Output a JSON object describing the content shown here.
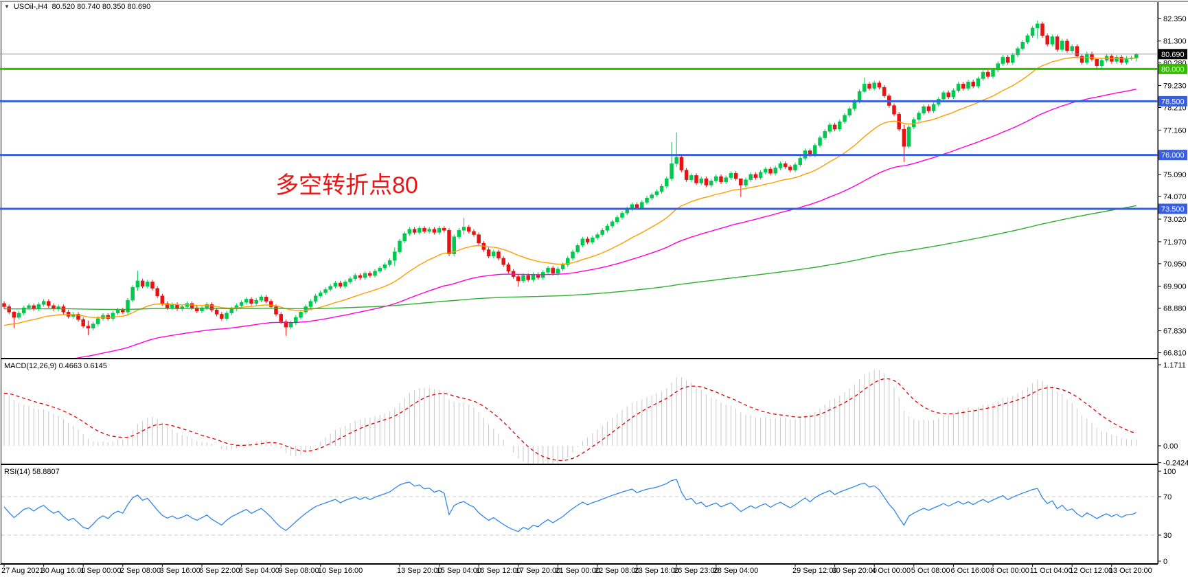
{
  "window": {
    "symbol_line": {
      "symbol": "USOil-,H4",
      "quote_text": "80.520 80.740 80.350 80.690"
    }
  },
  "annotation": {
    "text": "多空转折点80",
    "color": "#ee1414"
  },
  "panes": {
    "macd_label": "MACD(12,26,9) 0.4663 0.6145",
    "rsi_label": "RSI(14) 58.8807"
  },
  "colors": {
    "bull": "#00c94f",
    "bear": "#e81212",
    "ma_fast": "#ff9d00",
    "ma_medium": "#ff00e1",
    "ma_slow": "#2fae2f",
    "macd_hist": "#c6c6c6",
    "macd_signal": "#e00000",
    "rsi_line": "#2e86e8",
    "level_dash": "#c8c8c8",
    "hline_blue": "#3a5fdc",
    "hline_green": "#33bb00",
    "current_line": "#909090",
    "current_badge": "#000000",
    "axis_text": "#000000"
  },
  "chart_data": {
    "type": "candlestick+indicators",
    "symbol": "USOil-",
    "timeframe": "H4",
    "current_quote": {
      "open": 80.52,
      "high": 80.74,
      "low": 80.35,
      "close": 80.69
    },
    "price_axis": {
      "ylim": [
        66.57,
        83.11
      ],
      "ticks": [
        82.35,
        81.3,
        80.28,
        79.23,
        78.21,
        77.16,
        76.14,
        75.09,
        74.07,
        73.02,
        71.97,
        70.95,
        69.9,
        68.88,
        67.83,
        66.81
      ]
    },
    "macd_axis": {
      "ylim": [
        -0.256,
        1.241
      ],
      "ticks": [
        {
          "t": "1.1711",
          "v": 1.1711
        },
        {
          "t": "0.00",
          "v": 0
        },
        {
          "t": "-0.2424",
          "v": -0.2424
        }
      ]
    },
    "rsi_axis": {
      "ylim": [
        0.7,
        102.9
      ],
      "ticks": [
        {
          "t": "100",
          "v": 100
        },
        {
          "t": "70",
          "v": 70
        },
        {
          "t": "30",
          "v": 30
        },
        {
          "t": "0",
          "v": 0
        }
      ],
      "levels": [
        70,
        30
      ]
    },
    "hlines": [
      {
        "label": "80.000",
        "value": 80.0,
        "color": "#33bb00",
        "width": 3
      },
      {
        "label": "78.500",
        "value": 78.5,
        "color": "#3a5fdc",
        "width": 3
      },
      {
        "label": "76.000",
        "value": 76.0,
        "color": "#3a5fdc",
        "width": 3
      },
      {
        "label": "73.500",
        "value": 73.5,
        "color": "#3a5fdc",
        "width": 3
      }
    ],
    "current_price_line": {
      "label": "80.690",
      "value": 80.69
    },
    "time_labels": [
      {
        "t": "27 Aug 2021",
        "bar": 0
      },
      {
        "t": "30 Aug 16:00",
        "bar": 8
      },
      {
        "t": "1 Sep 00:00",
        "bar": 16
      },
      {
        "t": "2 Sep 08:00",
        "bar": 24
      },
      {
        "t": "3 Sep 16:00",
        "bar": 32
      },
      {
        "t": "6 Sep 22:00",
        "bar": 40
      },
      {
        "t": "8 Sep 04:00",
        "bar": 48
      },
      {
        "t": "9 Sep 08:00",
        "bar": 56
      },
      {
        "t": "10 Sep 16:00",
        "bar": 64
      },
      {
        "t": "13 Sep 20:00",
        "bar": 80
      },
      {
        "t": "15 Sep 04:00",
        "bar": 88
      },
      {
        "t": "16 Sep 12:00",
        "bar": 96
      },
      {
        "t": "17 Sep 20:00",
        "bar": 104
      },
      {
        "t": "21 Sep 00:00",
        "bar": 112
      },
      {
        "t": "22 Sep 08:00",
        "bar": 120
      },
      {
        "t": "23 Sep 16:00",
        "bar": 128
      },
      {
        "t": "26 Sep 23:00",
        "bar": 136
      },
      {
        "t": "28 Sep 04:00",
        "bar": 144
      },
      {
        "t": "29 Sep 12:00",
        "bar": 160
      },
      {
        "t": "30 Sep 20:00",
        "bar": 168
      },
      {
        "t": "4 Oct 00:00",
        "bar": 176
      },
      {
        "t": "5 Oct 08:00",
        "bar": 184
      },
      {
        "t": "6 Oct 16:00",
        "bar": 192
      },
      {
        "t": "8 Oct 00:00",
        "bar": 200
      },
      {
        "t": "11 Oct 04:00",
        "bar": 208
      },
      {
        "t": "12 Oct 12:00",
        "bar": 216
      },
      {
        "t": "13 Oct 20:00",
        "bar": 224
      }
    ],
    "candles": {
      "first_open": 69.1,
      "default_wick": 0.1,
      "closes": [
        68.95,
        68.7,
        68.45,
        68.65,
        68.9,
        69.0,
        68.85,
        69.05,
        69.2,
        69.0,
        68.85,
        68.95,
        68.7,
        68.5,
        68.6,
        68.35,
        68.05,
        67.95,
        68.15,
        68.4,
        68.55,
        68.4,
        68.65,
        68.8,
        68.7,
        69.25,
        69.85,
        70.15,
        69.9,
        70.1,
        69.8,
        69.45,
        69.1,
        68.9,
        69.05,
        68.85,
        68.95,
        69.1,
        68.9,
        68.75,
        68.9,
        69.05,
        68.8,
        68.6,
        68.4,
        68.65,
        68.85,
        69.0,
        69.15,
        69.3,
        69.1,
        69.25,
        69.4,
        69.2,
        68.95,
        68.6,
        68.25,
        68.0,
        68.2,
        68.45,
        68.7,
        68.95,
        69.2,
        69.45,
        69.6,
        69.75,
        69.9,
        70.05,
        69.9,
        70.1,
        70.25,
        70.4,
        70.3,
        70.5,
        70.4,
        70.6,
        70.75,
        70.9,
        71.1,
        71.5,
        72.0,
        72.35,
        72.55,
        72.4,
        72.6,
        72.45,
        72.55,
        72.4,
        72.6,
        72.5,
        71.4,
        72.2,
        72.5,
        72.65,
        72.45,
        72.3,
        71.9,
        71.6,
        71.3,
        71.5,
        71.2,
        70.9,
        70.6,
        70.35,
        70.15,
        70.4,
        70.2,
        70.45,
        70.3,
        70.55,
        70.75,
        70.5,
        70.7,
        70.9,
        71.2,
        71.5,
        71.8,
        72.1,
        71.95,
        72.15,
        72.3,
        72.5,
        72.7,
        72.9,
        73.1,
        73.3,
        73.5,
        73.7,
        73.55,
        73.8,
        74.0,
        74.15,
        74.3,
        74.55,
        74.9,
        75.6,
        75.9,
        75.3,
        74.85,
        75.05,
        74.7,
        74.9,
        74.6,
        74.8,
        75.0,
        74.75,
        74.95,
        75.15,
        74.9,
        74.6,
        74.85,
        75.1,
        74.95,
        75.2,
        75.35,
        75.15,
        75.4,
        75.6,
        75.45,
        75.3,
        75.55,
        75.85,
        76.2,
        76.0,
        76.45,
        76.8,
        77.1,
        77.4,
        77.2,
        77.55,
        77.85,
        78.15,
        78.5,
        78.95,
        79.3,
        79.1,
        79.35,
        79.15,
        78.75,
        78.3,
        77.9,
        77.2,
        76.4,
        77.3,
        77.65,
        77.95,
        78.25,
        78.05,
        78.35,
        78.6,
        78.9,
        78.7,
        79.0,
        79.3,
        79.1,
        79.4,
        79.2,
        79.55,
        79.85,
        79.65,
        79.95,
        80.25,
        80.55,
        80.3,
        80.65,
        80.95,
        81.25,
        81.55,
        81.9,
        82.1,
        81.55,
        81.15,
        81.5,
        80.9,
        81.3,
        80.85,
        81.05,
        80.6,
        80.3,
        80.7,
        80.45,
        80.15,
        80.4,
        80.6,
        80.35,
        80.55,
        80.3,
        80.5,
        80.52,
        80.69
      ],
      "wick_overrides": {
        "2": [
          68.75,
          67.95
        ],
        "17": [
          68.3,
          67.62
        ],
        "27": [
          70.62,
          69.7
        ],
        "57": [
          68.35,
          67.6
        ],
        "79": [
          71.7,
          70.85
        ],
        "90": [
          72.6,
          71.3
        ],
        "93": [
          73.08,
          72.3
        ],
        "104": [
          70.45,
          69.88
        ],
        "135": [
          76.6,
          74.8
        ],
        "136": [
          77.05,
          75.45
        ],
        "149": [
          74.9,
          74.05
        ],
        "174": [
          79.6,
          78.9
        ],
        "182": [
          77.4,
          75.68
        ],
        "209": [
          82.25,
          81.4
        ],
        "221": [
          80.4,
          79.95
        ],
        "229": [
          80.74,
          80.35
        ]
      }
    },
    "indicators": {
      "macd": {
        "fast": 12,
        "slow": 26,
        "signal": 9,
        "current_macd": "0.4663",
        "current_signal": "0.6145"
      },
      "rsi": {
        "period": 14,
        "current": "58.8807",
        "levels": [
          70,
          30
        ]
      }
    }
  }
}
